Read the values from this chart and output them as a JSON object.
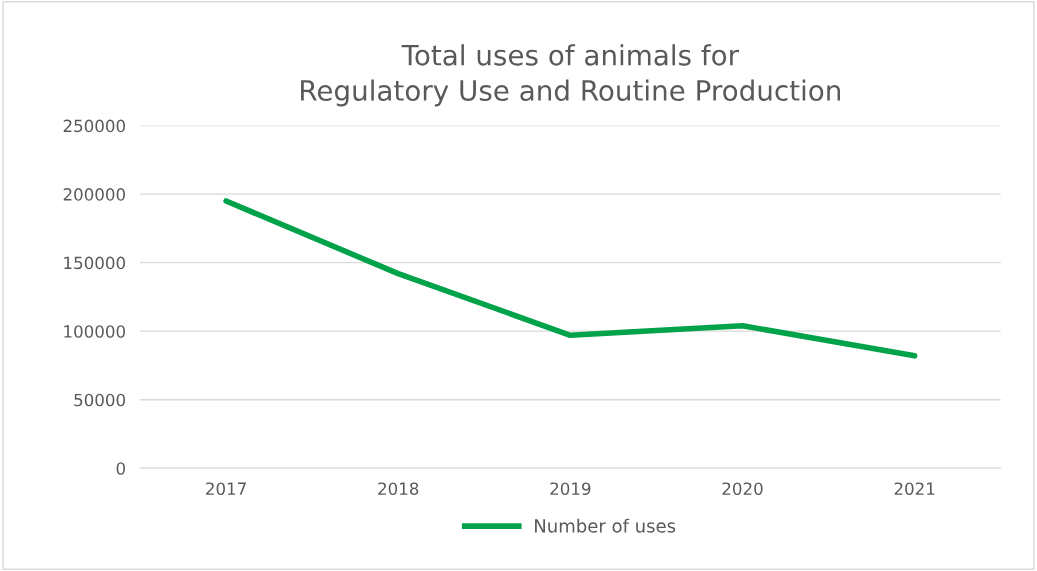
{
  "chart_data": {
    "type": "line",
    "title": "Total uses of animals for\nRegulatory Use and Routine Production",
    "categories": [
      "2017",
      "2018",
      "2019",
      "2020",
      "2021"
    ],
    "series": [
      {
        "name": "Number of uses",
        "color": "#00a24a",
        "values": [
          195000,
          142000,
          97000,
          104000,
          82000
        ]
      }
    ],
    "ylim": [
      0,
      250000
    ],
    "yticks": [
      0,
      50000,
      100000,
      150000,
      200000,
      250000
    ],
    "grid": "y",
    "legend": "bottom",
    "marker": "none",
    "line_style": "solid"
  }
}
